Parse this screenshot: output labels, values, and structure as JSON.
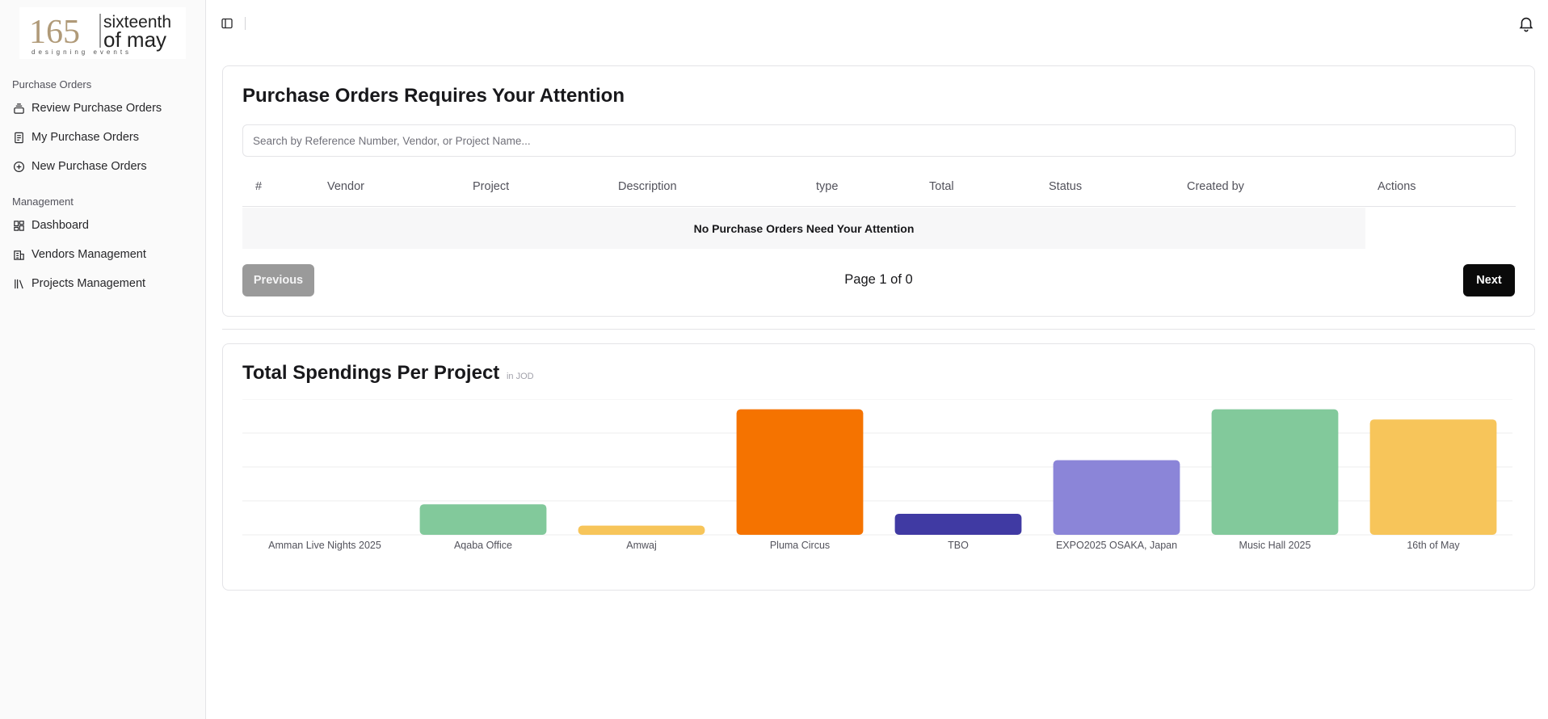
{
  "sidebar": {
    "logo": {
      "number": "165",
      "line1": "sixteenth",
      "line2": "of may",
      "tagline": "designing events"
    },
    "groups": [
      {
        "label": "Purchase Orders",
        "items": [
          {
            "label": "Review Purchase Orders",
            "icon": "stack-icon"
          },
          {
            "label": "My Purchase Orders",
            "icon": "document-icon"
          },
          {
            "label": "New Purchase Orders",
            "icon": "plus-circle-icon"
          }
        ]
      },
      {
        "label": "Management",
        "items": [
          {
            "label": "Dashboard",
            "icon": "dashboard-icon"
          },
          {
            "label": "Vendors Management",
            "icon": "building-icon"
          },
          {
            "label": "Projects Management",
            "icon": "library-icon"
          }
        ]
      }
    ]
  },
  "attention": {
    "title": "Purchase Orders Requires Your Attention",
    "search_placeholder": "Search by Reference Number, Vendor, or Project Name...",
    "columns": [
      "#",
      "Vendor",
      "Project",
      "Description",
      "type",
      "Total",
      "Status",
      "Created by",
      "Actions"
    ],
    "empty_message": "No Purchase Orders Need Your Attention",
    "prev_label": "Previous",
    "next_label": "Next",
    "page_info": "Page 1 of 0"
  },
  "spendings": {
    "title": "Total Spendings Per Project",
    "unit": "in JOD"
  },
  "chart_data": {
    "type": "bar",
    "categories": [
      "Amman Live Nights 2025",
      "Aqaba Office",
      "Amwaj",
      "Pluma Circus",
      "TBO",
      "EXPO2025 OSAKA, Japan",
      "Music Hall 2025",
      "16th of May"
    ],
    "values": [
      0,
      9,
      2.7,
      37,
      6.2,
      22,
      37,
      34
    ],
    "colors": [
      "#82c99b",
      "#82c99b",
      "#f7c55a",
      "#f57300",
      "#403aa3",
      "#8b85d8",
      "#82c99b",
      "#f7c55a"
    ],
    "ylim": [
      0,
      40
    ],
    "grid": true,
    "title": "",
    "xlabel": "",
    "ylabel": ""
  }
}
